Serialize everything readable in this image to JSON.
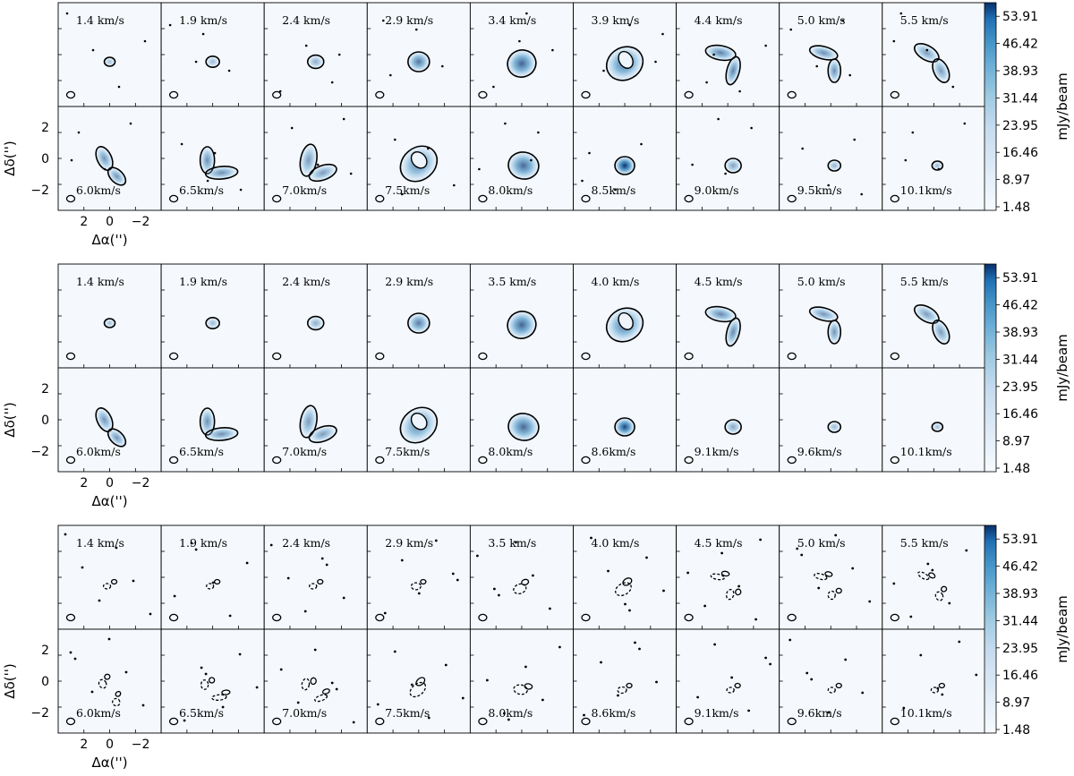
{
  "chart_data": [
    {
      "type": "heatmap",
      "subtype": "channel-map",
      "colormap": "Blues",
      "colorbar": {
        "label": "mJy/beam",
        "ticks": [
          53.91,
          46.42,
          38.93,
          31.44,
          23.95,
          16.46,
          8.97,
          1.48
        ],
        "tick_labels": [
          "53.91",
          "46.42",
          "38.93",
          "31.44",
          "23.95",
          "16.46",
          "8.97",
          "1.48"
        ]
      },
      "xlabel": "Δα('')",
      "ylabel": "Δδ('')",
      "xticks": [
        "2",
        "0",
        "−2"
      ],
      "yticks": [
        "2",
        "0",
        "−2"
      ],
      "channels_row1": [
        "1.4 km/s",
        "1.9 km/s",
        "2.4 km/s",
        "2.9 km/s",
        "3.4 km/s",
        "3.9 km/s",
        "4.4 km/s",
        "5.0 km/s",
        "5.5 km/s"
      ],
      "channels_row2": [
        "6.0km/s",
        "6.5km/s",
        "7.0km/s",
        "7.5km/s",
        "8.0km/s",
        "8.5km/s",
        "9.0km/s",
        "9.5km/s",
        "10.1km/s"
      ],
      "peak_intensity_mJy_beam": [
        [
          4,
          6,
          10,
          28,
          34,
          30,
          24,
          20,
          16
        ],
        [
          18,
          20,
          16,
          24,
          32,
          50,
          14,
          8,
          6
        ]
      ]
    },
    {
      "type": "heatmap",
      "subtype": "channel-map",
      "colormap": "Blues",
      "colorbar": {
        "label": "mJy/beam",
        "ticks": [
          53.91,
          46.42,
          38.93,
          31.44,
          23.95,
          16.46,
          8.97,
          1.48
        ],
        "tick_labels": [
          "53.91",
          "46.42",
          "38.93",
          "31.44",
          "23.95",
          "16.46",
          "8.97",
          "1.48"
        ]
      },
      "xlabel": "Δα('')",
      "ylabel": "Δδ('')",
      "xticks": [
        "2",
        "0",
        "−2"
      ],
      "yticks": [
        "2",
        "0",
        "−2"
      ],
      "channels_row1": [
        "1.4 km/s",
        "1.9 km/s",
        "2.4 km/s",
        "2.9 km/s",
        "3.5 km/s",
        "4.0 km/s",
        "4.5 km/s",
        "5.0 km/s",
        "5.5 km/s"
      ],
      "channels_row2": [
        "6.0km/s",
        "6.5km/s",
        "7.0km/s",
        "7.5km/s",
        "8.0km/s",
        "8.6km/s",
        "9.1km/s",
        "9.6km/s",
        "10.1km/s"
      ],
      "peak_intensity_mJy_beam": [
        [
          4,
          6,
          10,
          26,
          34,
          28,
          22,
          18,
          16
        ],
        [
          18,
          20,
          16,
          24,
          32,
          44,
          12,
          6,
          4
        ]
      ]
    },
    {
      "type": "heatmap",
      "subtype": "channel-map-residual",
      "colormap": "Blues",
      "colorbar": {
        "label": "mJy/beam",
        "ticks": [
          53.91,
          46.42,
          38.93,
          31.44,
          23.95,
          16.46,
          8.97,
          1.48
        ],
        "tick_labels": [
          "53.91",
          "46.42",
          "38.93",
          "31.44",
          "23.95",
          "16.46",
          "8.97",
          "1.48"
        ]
      },
      "xlabel": "Δα('')",
      "ylabel": "Δδ('')",
      "xticks": [
        "2",
        "0",
        "−2"
      ],
      "yticks": [
        "2",
        "0",
        "−2"
      ],
      "channels_row1": [
        "1.4 km/s",
        "1.9 km/s",
        "2.4 km/s",
        "2.9 km/s",
        "3.5 km/s",
        "4.0 km/s",
        "4.5 km/s",
        "5.0 km/s",
        "5.5 km/s"
      ],
      "channels_row2": [
        "6.0km/s",
        "6.5km/s",
        "7.0km/s",
        "7.5km/s",
        "8.0km/s",
        "8.6km/s",
        "9.1km/s",
        "9.6km/s",
        "10.1km/s"
      ],
      "peak_intensity_mJy_beam": [
        [
          2,
          2,
          2,
          2,
          4,
          6,
          2,
          2,
          2
        ],
        [
          2,
          2,
          2,
          4,
          2,
          2,
          2,
          2,
          2
        ]
      ]
    }
  ]
}
